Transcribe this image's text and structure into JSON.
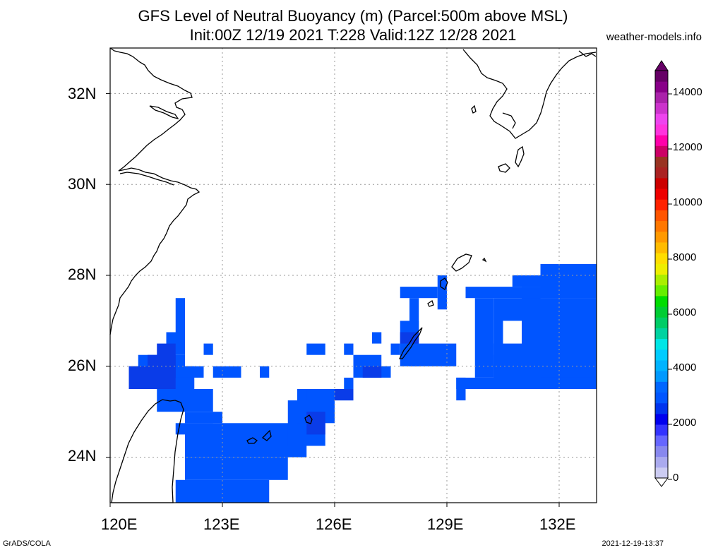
{
  "title_line1": "GFS Level of Neutral Buoyancy (m) (Parcel:500m above MSL)",
  "title_line2": "Init:00Z 12/19 2021 T:228 Valid:12Z 12/28 2021",
  "site": "weather-models.info",
  "footer_left": "GrADS/COLA",
  "footer_right": "2021-12-19-13:37",
  "axes": {
    "lon_labels": [
      "120E",
      "123E",
      "126E",
      "129E",
      "132E"
    ],
    "lat_labels": [
      "32N",
      "30N",
      "28N",
      "26N",
      "24N"
    ],
    "lon_range": [
      120,
      133
    ],
    "lat_range": [
      23,
      33
    ],
    "grid": true
  },
  "colorbar": {
    "labels": [
      "14000",
      "12000",
      "10000",
      "8000",
      "6000",
      "4000",
      "2000",
      "0"
    ],
    "colors": [
      "#ccccf2",
      "#aaaaee",
      "#8888ee",
      "#6666ff",
      "#3333ff",
      "#0000ee",
      "#0033ee",
      "#0055ff",
      "#0066ff",
      "#0099ff",
      "#00b3ff",
      "#00ccff",
      "#00e6e6",
      "#00d2a0",
      "#00cc66",
      "#00cc33",
      "#00dd00",
      "#66ee00",
      "#aaee00",
      "#eeee00",
      "#ffdd00",
      "#ffbb00",
      "#ff9900",
      "#ff7700",
      "#ff5500",
      "#ff2200",
      "#ee0000",
      "#cc0000",
      "#aa2222",
      "#993322",
      "#cc0066",
      "#ff00aa",
      "#ff33dd",
      "#ee44ee",
      "#cc33cc",
      "#aa22aa",
      "#880088",
      "#660066"
    ]
  },
  "colors": {
    "cape_main": "#0055ff",
    "cape_deep": "#0a3ce8"
  },
  "shaded_cells": [
    {
      "lon": [
        121.75,
        122.0
      ],
      "lat": [
        26.75,
        27.5
      ]
    },
    {
      "lon": [
        121.5,
        122.0
      ],
      "lat": [
        26.25,
        26.75
      ]
    },
    {
      "lon": [
        120.75,
        122.0
      ],
      "lat": [
        25.75,
        26.25
      ]
    },
    {
      "lon": [
        120.5,
        122.25
      ],
      "lat": [
        25.5,
        26.0
      ]
    },
    {
      "lon": [
        121.25,
        122.75
      ],
      "lat": [
        25.0,
        25.5
      ]
    },
    {
      "lon": [
        121.5,
        122.5
      ],
      "lat": [
        25.75,
        26.0
      ]
    },
    {
      "lon": [
        122.0,
        123.0
      ],
      "lat": [
        24.75,
        25.0
      ]
    },
    {
      "lon": [
        121.75,
        122.75
      ],
      "lat": [
        24.5,
        24.75
      ]
    },
    {
      "lon": [
        122.0,
        125.25
      ],
      "lat": [
        24.0,
        24.75
      ]
    },
    {
      "lon": [
        122.0,
        124.75
      ],
      "lat": [
        23.5,
        24.0
      ]
    },
    {
      "lon": [
        121.75,
        124.25
      ],
      "lat": [
        23.0,
        23.5
      ]
    },
    {
      "lon": [
        124.75,
        125.75
      ],
      "lat": [
        24.25,
        25.25
      ]
    },
    {
      "lon": [
        125.0,
        126.0
      ],
      "lat": [
        24.75,
        25.5
      ]
    },
    {
      "lon": [
        125.25,
        126.5
      ],
      "lat": [
        25.25,
        25.5
      ]
    },
    {
      "lon": [
        126.25,
        126.5
      ],
      "lat": [
        25.5,
        25.75
      ]
    },
    {
      "lon": [
        126.5,
        127.25
      ],
      "lat": [
        25.75,
        26.25
      ]
    },
    {
      "lon": [
        126.75,
        127.5
      ],
      "lat": [
        25.75,
        26.0
      ]
    },
    {
      "lon": [
        122.5,
        122.75
      ],
      "lat": [
        26.25,
        26.5
      ]
    },
    {
      "lon": [
        122.75,
        123.5
      ],
      "lat": [
        25.75,
        26.0
      ]
    },
    {
      "lon": [
        124.0,
        124.25
      ],
      "lat": [
        25.75,
        26.0
      ]
    },
    {
      "lon": [
        125.25,
        125.75
      ],
      "lat": [
        26.25,
        26.5
      ]
    },
    {
      "lon": [
        126.25,
        126.5
      ],
      "lat": [
        26.25,
        26.5
      ]
    },
    {
      "lon": [
        127.0,
        127.25
      ],
      "lat": [
        26.5,
        26.75
      ]
    },
    {
      "lon": [
        127.5,
        127.75
      ],
      "lat": [
        26.25,
        26.5
      ]
    },
    {
      "lon": [
        127.75,
        128.25
      ],
      "lat": [
        26.0,
        27.0
      ]
    },
    {
      "lon": [
        128.0,
        129.25
      ],
      "lat": [
        26.0,
        26.5
      ]
    },
    {
      "lon": [
        128.0,
        128.25
      ],
      "lat": [
        26.75,
        27.5
      ]
    },
    {
      "lon": [
        127.75,
        128.75
      ],
      "lat": [
        27.5,
        27.75
      ]
    },
    {
      "lon": [
        128.75,
        129.0
      ],
      "lat": [
        27.25,
        28.0
      ]
    },
    {
      "lon": [
        129.5,
        131.5
      ],
      "lat": [
        27.5,
        27.75
      ]
    },
    {
      "lon": [
        129.75,
        130.25
      ],
      "lat": [
        25.75,
        27.5
      ]
    },
    {
      "lon": [
        130.25,
        130.5
      ],
      "lat": [
        25.75,
        26.5
      ]
    },
    {
      "lon": [
        130.25,
        131.25
      ],
      "lat": [
        25.75,
        26.25
      ]
    },
    {
      "lon": [
        131.0,
        131.5
      ],
      "lat": [
        25.5,
        27.75
      ]
    },
    {
      "lon": [
        130.25,
        133.0
      ],
      "lat": [
        25.5,
        27.5
      ]
    },
    {
      "lon": [
        131.5,
        133.0
      ],
      "lat": [
        27.5,
        28.25
      ]
    },
    {
      "lon": [
        130.75,
        131.5
      ],
      "lat": [
        27.75,
        28.0
      ]
    },
    {
      "lon": [
        131.5,
        133.0
      ],
      "lat": [
        25.75,
        27.5
      ]
    },
    {
      "lon": [
        129.25,
        130.5
      ],
      "lat": [
        25.5,
        25.75
      ]
    },
    {
      "lon": [
        129.25,
        129.5
      ],
      "lat": [
        25.25,
        25.75
      ]
    }
  ],
  "deep_cells": [
    {
      "lon": [
        120.5,
        121.75
      ],
      "lat": [
        25.5,
        26.0
      ]
    },
    {
      "lon": [
        121.0,
        121.75
      ],
      "lat": [
        25.75,
        26.25
      ]
    },
    {
      "lon": [
        121.25,
        121.75
      ],
      "lat": [
        26.0,
        26.5
      ]
    },
    {
      "lon": [
        125.25,
        125.75
      ],
      "lat": [
        24.5,
        25.0
      ]
    },
    {
      "lon": [
        126.0,
        126.5
      ],
      "lat": [
        25.25,
        25.5
      ]
    },
    {
      "lon": [
        126.75,
        127.25
      ],
      "lat": [
        25.75,
        26.0
      ]
    },
    {
      "lon": [
        127.75,
        128.25
      ],
      "lat": [
        26.5,
        26.75
      ]
    }
  ],
  "hole_cells": [
    {
      "lon": [
        130.5,
        131.0
      ],
      "lat": [
        26.5,
        27.0
      ]
    }
  ]
}
